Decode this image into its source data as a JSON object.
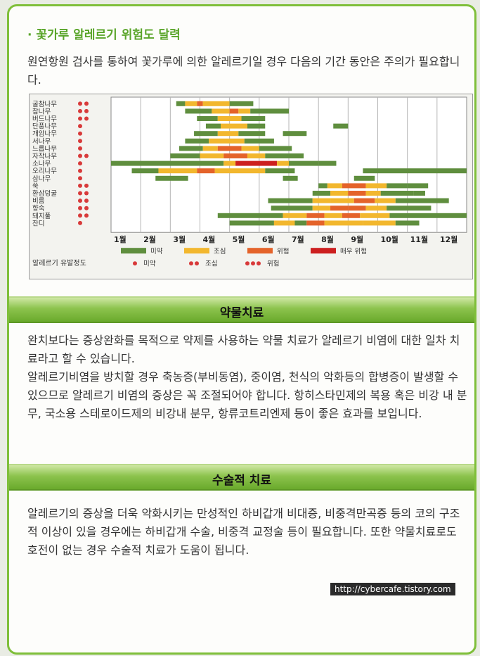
{
  "title": "· 꽃가루 알레르기 위험도 달력",
  "intro": "원연항원 검사를 통하여 꽃가루에 의한 알레르기일 경우 다음의 기간 동안은 주의가 필요합니다.",
  "chart_data": {
    "type": "table",
    "plants": [
      "굴참나무",
      "참나무",
      "버드나무",
      "단풍나무",
      "개암나무",
      "서나무",
      "느릅나무",
      "자작나무",
      "소나무",
      "오리나무",
      "삼나무",
      "쑥",
      "환삼덩굴",
      "비름",
      "향숙",
      "돼지풀",
      "잔디"
    ],
    "danger_dots": [
      2,
      2,
      2,
      1,
      1,
      1,
      1,
      2,
      1,
      1,
      1,
      2,
      2,
      2,
      2,
      2,
      1
    ],
    "months": [
      "1월",
      "2월",
      "3월",
      "4월",
      "5월",
      "6월",
      "7월",
      "8월",
      "9월",
      "10월",
      "11월",
      "12월"
    ],
    "levels": [
      {
        "name": "미약",
        "color": "#5f8e3e"
      },
      {
        "name": "조심",
        "color": "#f2b72e"
      },
      {
        "name": "위험",
        "color": "#e4632a"
      },
      {
        "name": "매우 위험",
        "color": "#cc1f1f"
      }
    ],
    "rows": [
      [
        [
          2.2,
          2.5,
          0
        ],
        [
          2.5,
          2.9,
          1
        ],
        [
          2.9,
          3.1,
          2
        ],
        [
          3.1,
          4.0,
          1
        ],
        [
          4.0,
          4.8,
          0
        ]
      ],
      [
        [
          2.5,
          3.4,
          0
        ],
        [
          3.4,
          4.0,
          1
        ],
        [
          4.0,
          4.3,
          2
        ],
        [
          4.3,
          4.7,
          1
        ],
        [
          4.7,
          5.3,
          0
        ],
        [
          5.3,
          6.0,
          0
        ]
      ],
      [
        [
          2.9,
          3.6,
          0
        ],
        [
          3.6,
          4.4,
          1
        ],
        [
          4.4,
          5.2,
          0
        ]
      ],
      [
        [
          3.2,
          3.7,
          0
        ],
        [
          3.7,
          4.6,
          1
        ],
        [
          4.6,
          5.2,
          0
        ],
        [
          7.5,
          8.0,
          0
        ]
      ],
      [
        [
          2.8,
          3.6,
          0
        ],
        [
          3.6,
          4.3,
          1
        ],
        [
          4.3,
          5.2,
          0
        ],
        [
          5.8,
          6.6,
          0
        ]
      ],
      [
        [
          2.5,
          3.3,
          0
        ],
        [
          3.3,
          4.5,
          1
        ],
        [
          4.5,
          5.5,
          0
        ]
      ],
      [
        [
          2.3,
          3.1,
          0
        ],
        [
          3.1,
          3.6,
          1
        ],
        [
          3.6,
          4.4,
          2
        ],
        [
          4.4,
          5.0,
          1
        ],
        [
          5.0,
          6.1,
          0
        ]
      ],
      [
        [
          2.0,
          3.0,
          0
        ],
        [
          3.0,
          3.8,
          1
        ],
        [
          3.8,
          4.6,
          2
        ],
        [
          4.6,
          5.2,
          1
        ],
        [
          5.2,
          6.5,
          0
        ]
      ],
      [
        [
          0.0,
          3.8,
          0
        ],
        [
          3.8,
          4.2,
          1
        ],
        [
          4.2,
          5.6,
          3
        ],
        [
          5.6,
          6.0,
          1
        ],
        [
          6.0,
          7.0,
          0
        ],
        [
          7.0,
          7.6,
          0
        ]
      ],
      [
        [
          0.7,
          1.6,
          0
        ],
        [
          1.6,
          2.9,
          1
        ],
        [
          2.9,
          3.5,
          2
        ],
        [
          3.5,
          5.2,
          1
        ],
        [
          5.2,
          6.2,
          0
        ],
        [
          8.5,
          12.0,
          0
        ]
      ],
      [
        [
          1.5,
          2.6,
          0
        ],
        [
          5.8,
          6.3,
          0
        ],
        [
          8.2,
          8.9,
          0
        ]
      ],
      [
        [
          7.0,
          7.3,
          0
        ],
        [
          7.3,
          7.8,
          1
        ],
        [
          7.8,
          8.6,
          2
        ],
        [
          8.6,
          9.3,
          1
        ],
        [
          9.3,
          10.0,
          0
        ],
        [
          10.0,
          10.7,
          0
        ]
      ],
      [
        [
          6.8,
          7.4,
          0
        ],
        [
          7.4,
          8.0,
          1
        ],
        [
          8.0,
          8.6,
          2
        ],
        [
          8.6,
          9.1,
          1
        ],
        [
          9.1,
          10.2,
          0
        ],
        [
          10.2,
          10.6,
          0
        ]
      ],
      [
        [
          5.3,
          6.8,
          0
        ],
        [
          6.8,
          7.4,
          1
        ],
        [
          7.4,
          8.2,
          1
        ],
        [
          8.2,
          8.9,
          2
        ],
        [
          8.9,
          9.6,
          1
        ],
        [
          9.6,
          11.4,
          0
        ]
      ],
      [
        [
          5.4,
          6.8,
          0
        ],
        [
          6.8,
          7.4,
          1
        ],
        [
          7.4,
          8.0,
          2
        ],
        [
          8.0,
          8.6,
          2
        ],
        [
          8.6,
          9.3,
          1
        ],
        [
          9.3,
          10.8,
          0
        ]
      ],
      [
        [
          3.6,
          5.8,
          0
        ],
        [
          5.8,
          6.6,
          1
        ],
        [
          6.6,
          7.2,
          2
        ],
        [
          7.2,
          7.8,
          1
        ],
        [
          7.8,
          8.4,
          2
        ],
        [
          8.4,
          9.4,
          1
        ],
        [
          9.4,
          12.0,
          0
        ]
      ],
      [
        [
          4.0,
          5.5,
          0
        ],
        [
          5.5,
          6.2,
          1
        ],
        [
          6.2,
          6.6,
          0
        ],
        [
          6.6,
          7.2,
          2
        ],
        [
          7.2,
          8.5,
          1
        ],
        [
          8.5,
          9.6,
          1
        ],
        [
          9.6,
          10.4,
          0
        ]
      ]
    ],
    "legend_title": "알레르기 유발정도",
    "dot_legend": [
      {
        "dots": 1,
        "name": "미약"
      },
      {
        "dots": 2,
        "name": "조심"
      },
      {
        "dots": 3,
        "name": "위험"
      }
    ]
  },
  "section1": {
    "heading": "약물치료",
    "para1": "완치보다는 증상완화를 목적으로 약제를 사용하는 약물 치료가 알레르기 비염에 대한 일차 치료라고 할 수 있습니다.",
    "para2": "알레르기비염을 방치할 경우 축농증(부비동염), 중이염, 천식의 악화등의 합병증이 발생할 수 있으므로 알레르기 비염의 증상은 꼭 조절되어야 합니다. 항히스타민제의 복용 혹은 비강 내 분무, 국소용 스테로이드제의 비강내 분무, 항류코트리엔제 등이 좋은 효과를 보입니다."
  },
  "section2": {
    "heading": "수술적 치료",
    "para1": "알레르기의 증상을 더욱 악화시키는 만성적인 하비갑개 비대증, 비중격만곡증 등의 코의 구조적 이상이 있을 경우에는 하비갑개 수술, 비중격 교정술 등이 필요합니다. 또한 약물치료로도 호전이 없는 경우 수술적 치료가 도움이 됩니다."
  },
  "watermark": "http://cybercafe.tistory.com"
}
